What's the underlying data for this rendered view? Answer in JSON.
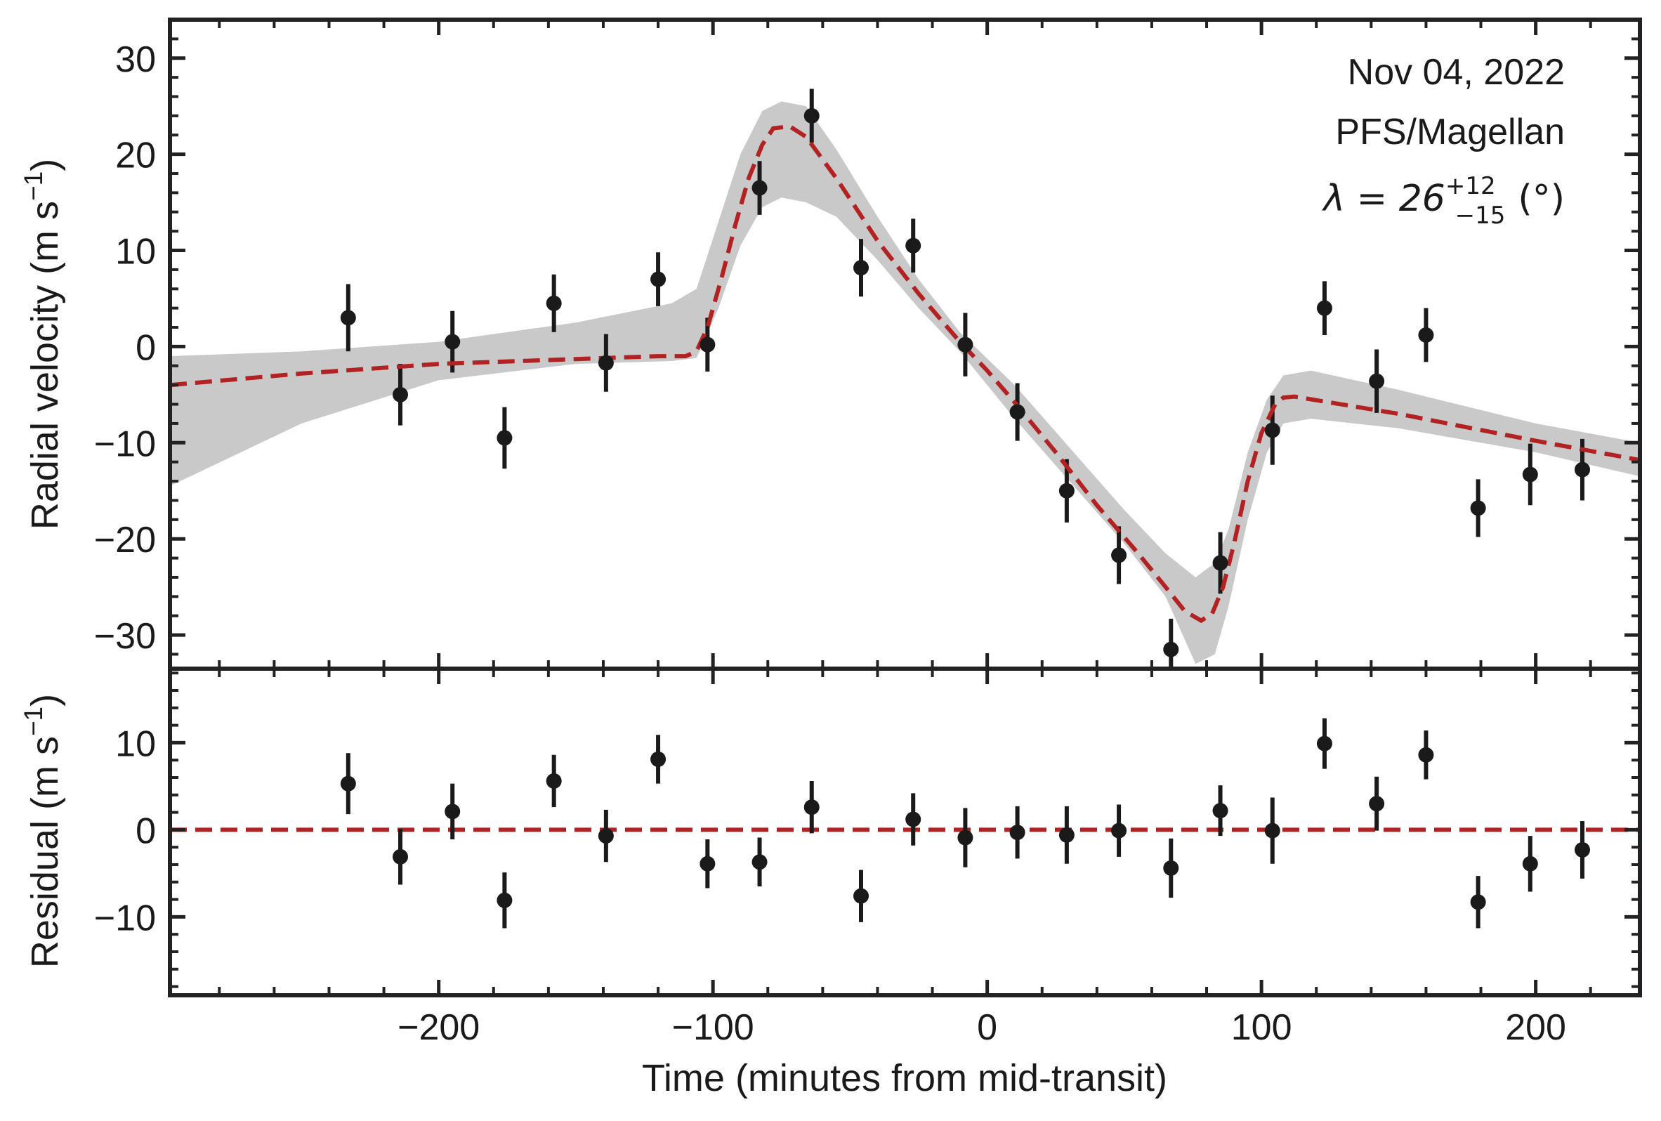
{
  "chart_data": [
    {
      "type": "line",
      "panel": "top",
      "ylabel_main": "Radial velocity (m s",
      "ylabel_exp": "−1",
      "ylabel_close": ")",
      "xlim": [
        -298,
        238
      ],
      "ylim": [
        -33.5,
        34
      ],
      "yticks": [
        -30,
        -20,
        -10,
        0,
        10,
        20,
        30
      ],
      "ytick_labels": [
        "−30",
        "−20",
        "−10",
        "0",
        "10",
        "20",
        "30"
      ],
      "annotations": {
        "date": "Nov 04, 2022",
        "instrument": "PFS/Magellan",
        "lambda_prefix": "λ = 26",
        "lambda_sup": "+12",
        "lambda_sub": "−15",
        "lambda_unit": "(°)"
      },
      "model_color": "#b22222",
      "band_color": "#c0c0c0",
      "data_color": "#1a1a1a",
      "data_points": [
        {
          "t": -233,
          "rv": 3.0,
          "err": 3.5
        },
        {
          "t": -214,
          "rv": -5.0,
          "err": 3.2
        },
        {
          "t": -195,
          "rv": 0.5,
          "err": 3.2
        },
        {
          "t": -176,
          "rv": -9.5,
          "err": 3.2
        },
        {
          "t": -158,
          "rv": 4.5,
          "err": 3.0
        },
        {
          "t": -139,
          "rv": -1.7,
          "err": 3.0
        },
        {
          "t": -120,
          "rv": 7.0,
          "err": 2.8
        },
        {
          "t": -102,
          "rv": 0.2,
          "err": 2.8
        },
        {
          "t": -83,
          "rv": 16.5,
          "err": 2.8
        },
        {
          "t": -64,
          "rv": 24.0,
          "err": 2.8
        },
        {
          "t": -46,
          "rv": 8.2,
          "err": 3.0
        },
        {
          "t": -27,
          "rv": 10.5,
          "err": 2.8
        },
        {
          "t": -8,
          "rv": 0.2,
          "err": 3.3
        },
        {
          "t": 11,
          "rv": -6.8,
          "err": 3.0
        },
        {
          "t": 29,
          "rv": -15.0,
          "err": 3.3
        },
        {
          "t": 48,
          "rv": -21.7,
          "err": 3.0
        },
        {
          "t": 67,
          "rv": -31.5,
          "err": 3.2
        },
        {
          "t": 85,
          "rv": -22.5,
          "err": 3.2
        },
        {
          "t": 104,
          "rv": -8.7,
          "err": 3.6
        },
        {
          "t": 123,
          "rv": 4.0,
          "err": 2.8
        },
        {
          "t": 142,
          "rv": -3.6,
          "err": 3.3
        },
        {
          "t": 160,
          "rv": 1.2,
          "err": 2.8
        },
        {
          "t": 179,
          "rv": -16.8,
          "err": 3.0
        },
        {
          "t": 198,
          "rv": -13.3,
          "err": 3.2
        },
        {
          "t": 217,
          "rv": -12.8,
          "err": 3.2
        }
      ],
      "model_curve": [
        [
          -298,
          -4.0
        ],
        [
          -250,
          -2.8
        ],
        [
          -200,
          -1.8
        ],
        [
          -150,
          -1.3
        ],
        [
          -120,
          -1.0
        ],
        [
          -110,
          -1.0
        ],
        [
          -106,
          -0.5
        ],
        [
          -102,
          2.0
        ],
        [
          -97,
          7.0
        ],
        [
          -92,
          12.5
        ],
        [
          -87,
          17.5
        ],
        [
          -82,
          21.0
        ],
        [
          -78,
          22.7
        ],
        [
          -72,
          22.9
        ],
        [
          -66,
          21.8
        ],
        [
          -55,
          17.5
        ],
        [
          -40,
          11.0
        ],
        [
          -25,
          5.5
        ],
        [
          -10,
          0.5
        ],
        [
          0,
          -2.5
        ],
        [
          10,
          -5.8
        ],
        [
          25,
          -11.0
        ],
        [
          40,
          -16.5
        ],
        [
          55,
          -21.5
        ],
        [
          65,
          -25.0
        ],
        [
          72,
          -27.5
        ],
        [
          78,
          -28.5
        ],
        [
          82,
          -27.8
        ],
        [
          86,
          -25.0
        ],
        [
          90,
          -20.5
        ],
        [
          95,
          -14.0
        ],
        [
          100,
          -9.0
        ],
        [
          105,
          -6.0
        ],
        [
          108,
          -5.3
        ],
        [
          112,
          -5.2
        ],
        [
          150,
          -7.0
        ],
        [
          200,
          -9.8
        ],
        [
          238,
          -11.8
        ]
      ],
      "band_upper": [
        [
          -298,
          -1.0
        ],
        [
          -250,
          -0.5
        ],
        [
          -200,
          0.5
        ],
        [
          -150,
          2.5
        ],
        [
          -115,
          4.5
        ],
        [
          -106,
          6.0
        ],
        [
          -98,
          13.0
        ],
        [
          -90,
          20.0
        ],
        [
          -82,
          24.5
        ],
        [
          -75,
          25.5
        ],
        [
          -66,
          25.0
        ],
        [
          -55,
          20.5
        ],
        [
          -40,
          13.5
        ],
        [
          -25,
          7.0
        ],
        [
          -10,
          1.5
        ],
        [
          10,
          -4.0
        ],
        [
          30,
          -10.5
        ],
        [
          50,
          -17.0
        ],
        [
          65,
          -21.5
        ],
        [
          76,
          -24.0
        ],
        [
          83,
          -22.5
        ],
        [
          88,
          -19.0
        ],
        [
          95,
          -11.0
        ],
        [
          102,
          -5.5
        ],
        [
          108,
          -3.0
        ],
        [
          118,
          -2.5
        ],
        [
          150,
          -4.5
        ],
        [
          200,
          -8.0
        ],
        [
          238,
          -10.0
        ]
      ],
      "band_lower": [
        [
          -298,
          -14.5
        ],
        [
          -250,
          -8.0
        ],
        [
          -200,
          -3.5
        ],
        [
          -150,
          -1.8
        ],
        [
          -115,
          -1.5
        ],
        [
          -106,
          -1.2
        ],
        [
          -98,
          4.0
        ],
        [
          -90,
          10.5
        ],
        [
          -82,
          14.5
        ],
        [
          -75,
          15.5
        ],
        [
          -66,
          15.0
        ],
        [
          -55,
          13.5
        ],
        [
          -40,
          9.0
        ],
        [
          -25,
          4.0
        ],
        [
          -10,
          -0.5
        ],
        [
          10,
          -7.5
        ],
        [
          30,
          -14.0
        ],
        [
          50,
          -20.5
        ],
        [
          65,
          -26.0
        ],
        [
          76,
          -33.0
        ],
        [
          83,
          -32.0
        ],
        [
          88,
          -27.0
        ],
        [
          95,
          -18.0
        ],
        [
          102,
          -11.0
        ],
        [
          108,
          -8.0
        ],
        [
          118,
          -7.5
        ],
        [
          150,
          -8.5
        ],
        [
          200,
          -11.0
        ],
        [
          238,
          -13.5
        ]
      ]
    },
    {
      "type": "scatter",
      "panel": "bottom",
      "xlabel": "Time (minutes from mid-transit)",
      "ylabel_main": "Residual (m s",
      "ylabel_exp": "−1",
      "ylabel_close": ")",
      "xlim": [
        -298,
        238
      ],
      "ylim": [
        -19,
        18.5
      ],
      "xticks": [
        -200,
        -100,
        0,
        100,
        200
      ],
      "xtick_labels": [
        "−200",
        "−100",
        "0",
        "100",
        "200"
      ],
      "yticks": [
        -10,
        0,
        10
      ],
      "ytick_labels": [
        "−10",
        "0",
        "10"
      ],
      "zero_line": 0,
      "residuals": [
        {
          "t": -233,
          "r": 5.3,
          "err": 3.5
        },
        {
          "t": -214,
          "r": -3.1,
          "err": 3.2
        },
        {
          "t": -195,
          "r": 2.1,
          "err": 3.2
        },
        {
          "t": -176,
          "r": -8.1,
          "err": 3.2
        },
        {
          "t": -158,
          "r": 5.6,
          "err": 3.0
        },
        {
          "t": -139,
          "r": -0.7,
          "err": 3.0
        },
        {
          "t": -120,
          "r": 8.1,
          "err": 2.8
        },
        {
          "t": -102,
          "r": -3.9,
          "err": 2.8
        },
        {
          "t": -83,
          "r": -3.7,
          "err": 2.8
        },
        {
          "t": -64,
          "r": 2.6,
          "err": 3.0
        },
        {
          "t": -46,
          "r": -7.6,
          "err": 3.0
        },
        {
          "t": -27,
          "r": 1.2,
          "err": 3.0
        },
        {
          "t": -8,
          "r": -0.9,
          "err": 3.4
        },
        {
          "t": 11,
          "r": -0.3,
          "err": 3.0
        },
        {
          "t": 29,
          "r": -0.6,
          "err": 3.3
        },
        {
          "t": 48,
          "r": -0.1,
          "err": 3.0
        },
        {
          "t": 67,
          "r": -4.4,
          "err": 3.4
        },
        {
          "t": 85,
          "r": 2.2,
          "err": 2.9
        },
        {
          "t": 104,
          "r": -0.1,
          "err": 3.8
        },
        {
          "t": 123,
          "r": 9.9,
          "err": 2.9
        },
        {
          "t": 142,
          "r": 3.0,
          "err": 3.1
        },
        {
          "t": 160,
          "r": 8.6,
          "err": 2.8
        },
        {
          "t": 179,
          "r": -8.3,
          "err": 3.0
        },
        {
          "t": 198,
          "r": -3.9,
          "err": 3.2
        },
        {
          "t": 217,
          "r": -2.3,
          "err": 3.3
        }
      ]
    }
  ]
}
